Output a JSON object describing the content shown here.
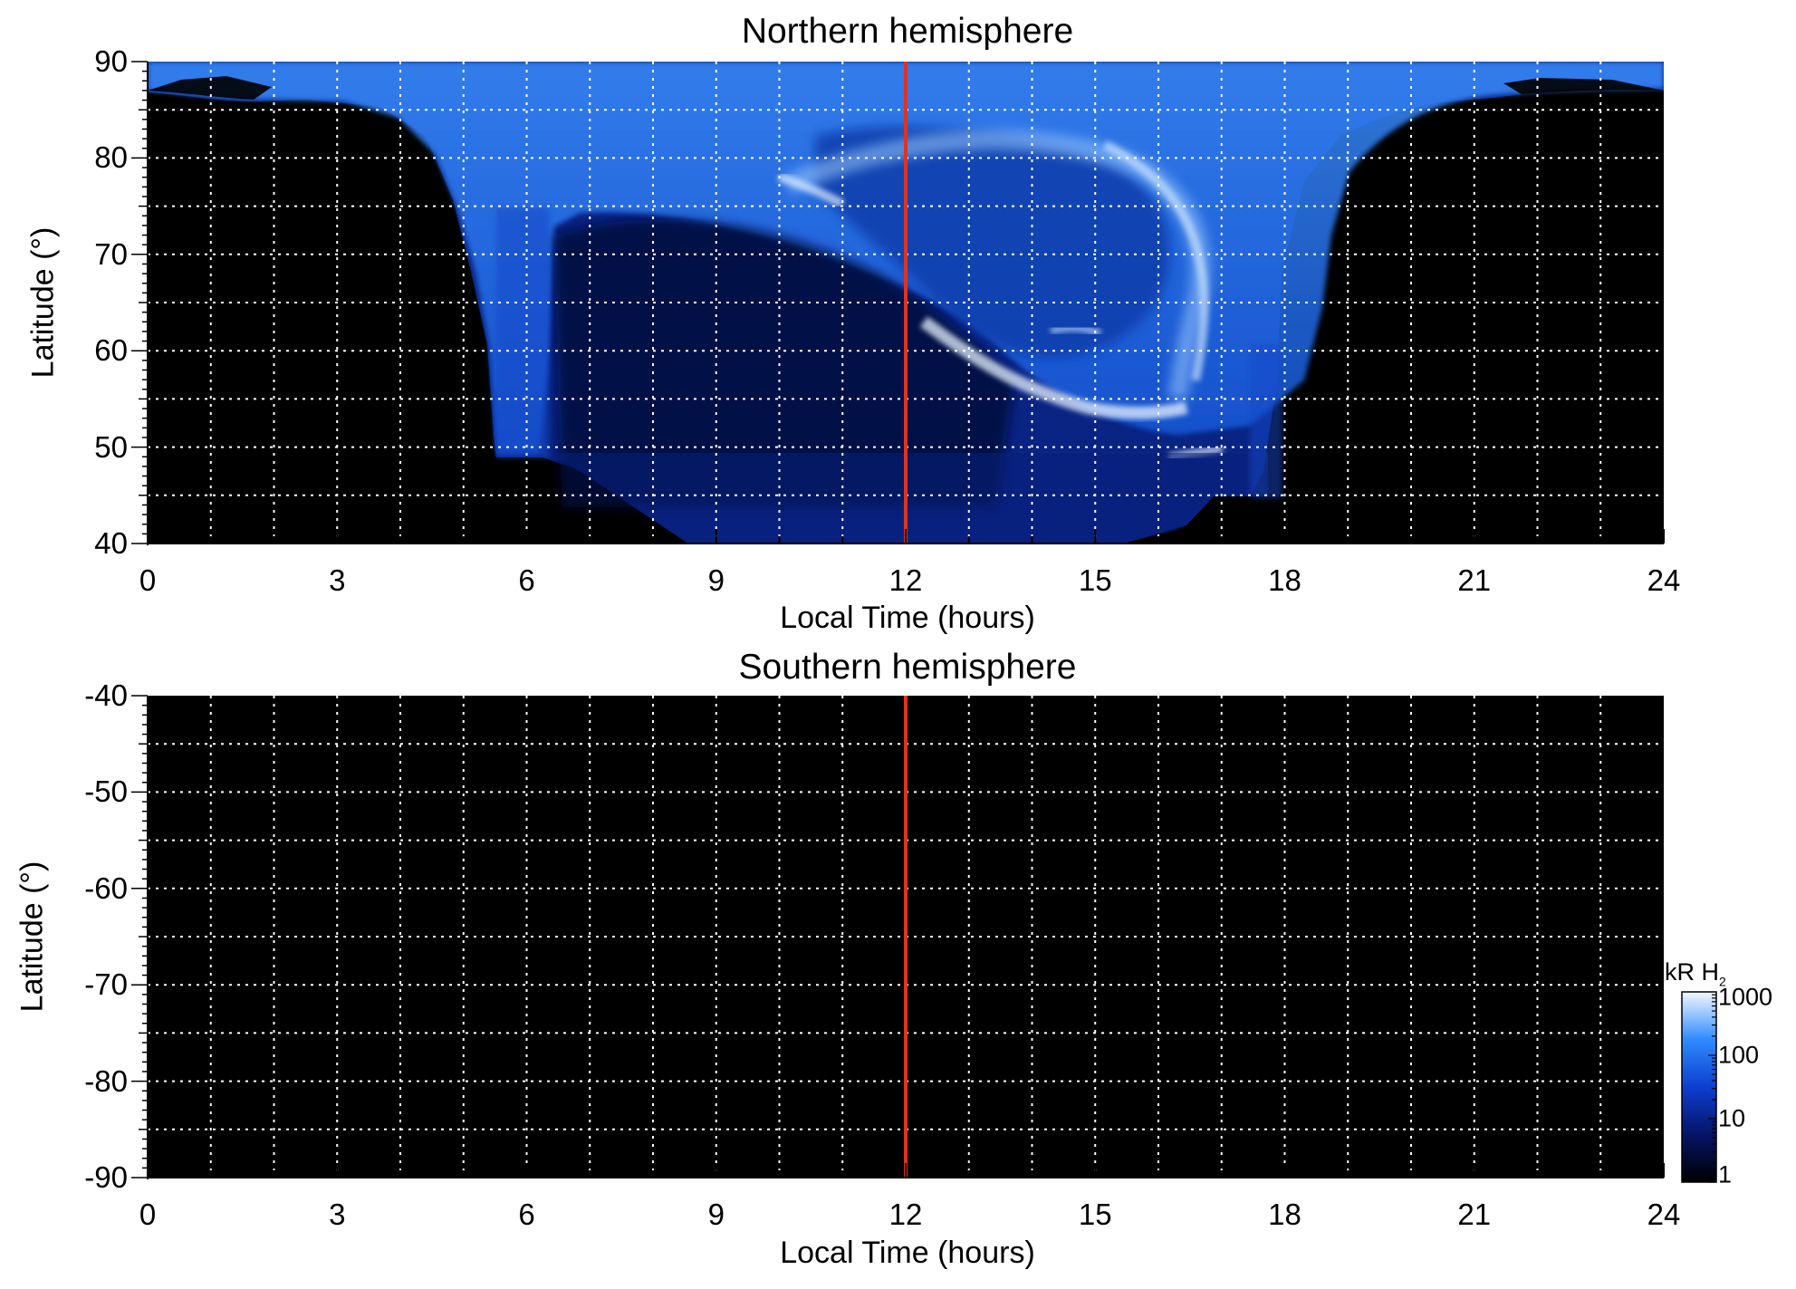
{
  "colors": {
    "background": "#000000",
    "aurora_dim": "#0a1a66",
    "aurora_mid": "#1f6dff",
    "aurora_bright": "#d8ecff",
    "noon_line": "#e0331f",
    "grid": "#ffffff",
    "axis": "#000000"
  },
  "chart_data": [
    {
      "type": "heatmap",
      "title": "Northern hemisphere",
      "xlabel": "Local Time (hours)",
      "ylabel": "Latitude (°)",
      "xlim": [
        0,
        24
      ],
      "ylim": [
        40,
        90
      ],
      "x_ticks": [
        "0",
        "3",
        "6",
        "9",
        "12",
        "15",
        "18",
        "21",
        "24"
      ],
      "y_ticks": [
        "40",
        "50",
        "60",
        "70",
        "80",
        "90"
      ],
      "grid": true,
      "reference_line_x": 12,
      "emission": "auroral oval emission visible between ~5.5 and ~18.5 h local time, latitudes ~45°–90°"
    },
    {
      "type": "heatmap",
      "title": "Southern hemisphere",
      "xlabel": "Local Time (hours)",
      "ylabel": "Latitude (°)",
      "xlim": [
        0,
        24
      ],
      "ylim": [
        -90,
        -40
      ],
      "x_ticks": [
        "0",
        "3",
        "6",
        "9",
        "12",
        "15",
        "18",
        "21",
        "24"
      ],
      "y_ticks": [
        "-40",
        "-50",
        "-60",
        "-70",
        "-80",
        "-90"
      ],
      "grid": true,
      "reference_line_x": 12,
      "emission": "no emission (all black)"
    }
  ],
  "colorbar": {
    "title": "kR H",
    "title_subscript": "2",
    "scale": "log",
    "range": [
      1,
      1000
    ],
    "tick_labels": [
      "1000",
      "100",
      "10",
      "1"
    ],
    "tick_values": [
      1000,
      100,
      10,
      1
    ]
  }
}
